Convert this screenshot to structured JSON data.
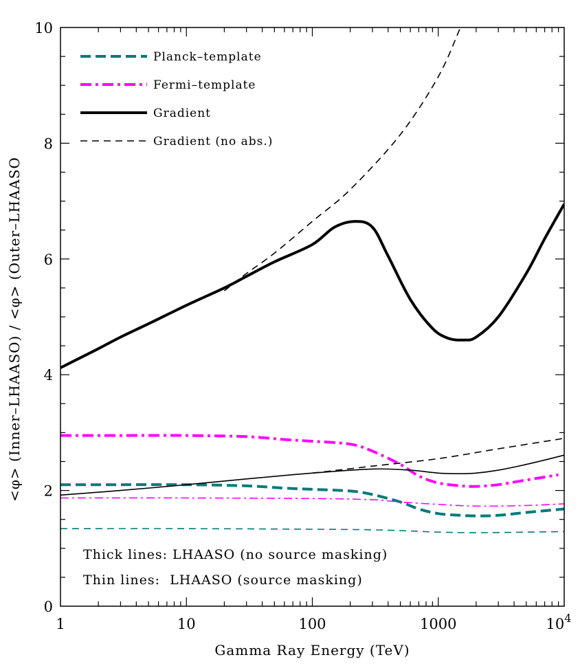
{
  "chart_data": {
    "type": "line",
    "x_scale": "log",
    "xlim": [
      1,
      10000
    ],
    "ylim": [
      0,
      10
    ],
    "xlabel": "Gamma Ray Energy (TeV)",
    "ylabel": "<φ> (Inner–LHAASO) / <φ> (Outer–LHAASO",
    "x_ticks": [
      {
        "value": 1,
        "label": "1"
      },
      {
        "value": 10,
        "label": "10"
      },
      {
        "value": 100,
        "label": "100"
      },
      {
        "value": 1000,
        "label": "1000"
      },
      {
        "value": 10000,
        "label": "10",
        "sup": "4"
      }
    ],
    "y_ticks": [
      {
        "value": 0,
        "label": "0"
      },
      {
        "value": 2,
        "label": "2"
      },
      {
        "value": 4,
        "label": "4"
      },
      {
        "value": 6,
        "label": "6"
      },
      {
        "value": 8,
        "label": "8"
      },
      {
        "value": 10,
        "label": "10"
      }
    ],
    "legend": [
      {
        "label": "Planck–template",
        "color": "#007b7b",
        "style": "dashed",
        "weight": "thick"
      },
      {
        "label": "Fermi–template",
        "color": "#ff00ff",
        "style": "dashdot",
        "weight": "thick"
      },
      {
        "label": "Gradient",
        "color": "#000000",
        "style": "solid",
        "weight": "thick"
      },
      {
        "label": "Gradient (no abs.)",
        "color": "#000000",
        "style": "dashed",
        "weight": "thin"
      }
    ],
    "legend_position": "top-left",
    "annotations": [
      "Thick lines: LHAASO (no source masking)",
      "Thin lines:  LHAASO (source masking)"
    ],
    "series": [
      {
        "name": "Gradient (no abs.) – upper",
        "color": "#000000",
        "style": "dashed",
        "weight": "thin",
        "x": [
          20,
          30,
          50,
          100,
          200,
          500,
          1000,
          1500
        ],
        "y": [
          5.45,
          5.75,
          6.1,
          6.65,
          7.2,
          8.15,
          9.15,
          10.0
        ]
      },
      {
        "name": "Gradient – no masking",
        "color": "#000000",
        "style": "solid",
        "weight": "thick",
        "x": [
          1,
          2,
          3,
          5,
          10,
          20,
          30,
          50,
          100,
          150,
          220,
          300,
          400,
          600,
          900,
          1200,
          1600,
          2000,
          3000,
          5000,
          7000,
          10000
        ],
        "y": [
          4.12,
          4.45,
          4.65,
          4.88,
          5.2,
          5.5,
          5.7,
          5.95,
          6.25,
          6.55,
          6.65,
          6.55,
          6.05,
          5.3,
          4.8,
          4.63,
          4.6,
          4.65,
          5.0,
          5.75,
          6.35,
          6.95
        ]
      },
      {
        "name": "Fermi–template – no masking",
        "color": "#ff00ff",
        "style": "dashdot",
        "weight": "thick",
        "x": [
          1,
          3,
          10,
          30,
          60,
          100,
          200,
          300,
          500,
          700,
          1000,
          1500,
          2000,
          3000,
          5000,
          9000
        ],
        "y": [
          2.95,
          2.95,
          2.95,
          2.93,
          2.88,
          2.85,
          2.8,
          2.68,
          2.45,
          2.25,
          2.13,
          2.08,
          2.07,
          2.1,
          2.18,
          2.27
        ]
      },
      {
        "name": "Planck–template – no masking",
        "color": "#007b7b",
        "style": "dashed",
        "weight": "thick",
        "x": [
          1,
          3,
          10,
          30,
          60,
          100,
          200,
          300,
          500,
          700,
          1000,
          1500,
          2000,
          3000,
          5000,
          10000
        ],
        "y": [
          2.1,
          2.1,
          2.1,
          2.08,
          2.04,
          2.02,
          1.99,
          1.93,
          1.8,
          1.68,
          1.6,
          1.57,
          1.56,
          1.57,
          1.62,
          1.68
        ]
      },
      {
        "name": "Gradient (no abs.) – source masking",
        "color": "#000000",
        "style": "dashed",
        "weight": "thin",
        "x": [
          100,
          300,
          1000,
          3000,
          10000
        ],
        "y": [
          2.3,
          2.42,
          2.55,
          2.72,
          2.9
        ]
      },
      {
        "name": "Gradient – source masking",
        "color": "#000000",
        "style": "solid",
        "weight": "thin",
        "x": [
          1,
          3,
          10,
          30,
          100,
          300,
          600,
          1000,
          1500,
          2000,
          3000,
          5000,
          10000
        ],
        "y": [
          1.92,
          2.0,
          2.1,
          2.2,
          2.3,
          2.37,
          2.35,
          2.3,
          2.29,
          2.3,
          2.35,
          2.45,
          2.61
        ]
      },
      {
        "name": "Fermi–template – source masking",
        "color": "#ff00ff",
        "style": "dashdot",
        "weight": "thin",
        "x": [
          1,
          10,
          100,
          300,
          500,
          1000,
          2000,
          5000,
          10000
        ],
        "y": [
          1.87,
          1.87,
          1.86,
          1.84,
          1.8,
          1.76,
          1.73,
          1.74,
          1.77
        ]
      },
      {
        "name": "Planck–template – source masking",
        "color": "#007b7b",
        "style": "dashed",
        "weight": "thin",
        "x": [
          1,
          10,
          100,
          300,
          600,
          1000,
          2000,
          5000,
          10000
        ],
        "y": [
          1.34,
          1.34,
          1.33,
          1.32,
          1.3,
          1.28,
          1.27,
          1.28,
          1.29
        ]
      }
    ]
  }
}
